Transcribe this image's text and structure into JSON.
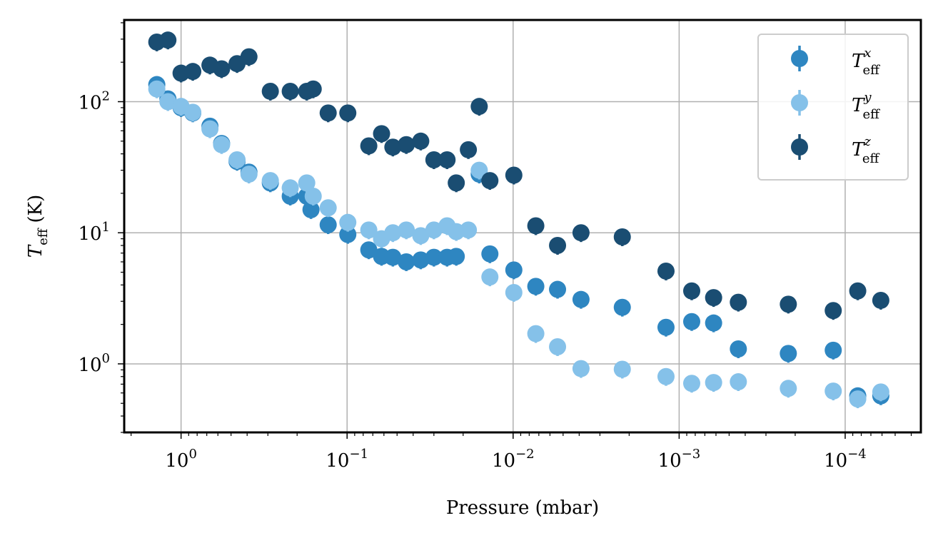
{
  "chart_data": {
    "type": "scatter",
    "xlabel": "Pressure (mbar)",
    "ylabel": "T",
    "ylabel_sub": "eff",
    "ylabel_unit": "(K)",
    "x_scale": "log",
    "y_scale": "log",
    "x_inverted": true,
    "xlim": [
      2.2,
      3.5e-05
    ],
    "ylim": [
      0.3,
      420
    ],
    "grid": true,
    "legend_placement": "top-right",
    "xticks": [
      {
        "base": "10",
        "exp": "0",
        "value": 1
      },
      {
        "base": "10",
        "exp": "−1",
        "value": 0.1
      },
      {
        "base": "10",
        "exp": "−2",
        "value": 0.01
      },
      {
        "base": "10",
        "exp": "−3",
        "value": 0.001
      },
      {
        "base": "10",
        "exp": "−4",
        "value": 0.0001
      }
    ],
    "yticks": [
      {
        "base": "10",
        "exp": "0",
        "value": 1
      },
      {
        "base": "10",
        "exp": "1",
        "value": 10
      },
      {
        "base": "10",
        "exp": "2",
        "value": 100
      }
    ],
    "series": [
      {
        "name": "T_eff^x",
        "legend_main": "T",
        "legend_sup": "x",
        "legend_sub": "eff",
        "color": "#2e86c1",
        "points": [
          [
            1.4,
            135
          ],
          [
            1.2,
            105
          ],
          [
            1.0,
            90
          ],
          [
            0.85,
            82
          ],
          [
            0.67,
            65
          ],
          [
            0.57,
            48
          ],
          [
            0.46,
            35
          ],
          [
            0.39,
            29
          ],
          [
            0.29,
            24
          ],
          [
            0.22,
            19
          ],
          [
            0.175,
            19
          ],
          [
            0.165,
            15
          ],
          [
            0.13,
            11.5
          ],
          [
            0.099,
            9.7
          ],
          [
            0.074,
            7.4
          ],
          [
            0.062,
            6.6
          ],
          [
            0.053,
            6.5
          ],
          [
            0.044,
            6.0
          ],
          [
            0.036,
            6.2
          ],
          [
            0.03,
            6.5
          ],
          [
            0.025,
            6.5
          ],
          [
            0.022,
            6.6
          ],
          [
            0.016,
            28
          ],
          [
            0.0138,
            6.9
          ],
          [
            0.0099,
            5.2
          ],
          [
            0.0073,
            3.9
          ],
          [
            0.0054,
            3.7
          ],
          [
            0.0039,
            3.1
          ],
          [
            0.0022,
            2.7
          ],
          [
            0.0012,
            1.9
          ],
          [
            0.00084,
            2.1
          ],
          [
            0.00062,
            2.05
          ],
          [
            0.00044,
            1.3
          ],
          [
            0.00022,
            1.2
          ],
          [
            0.000118,
            1.27
          ],
          [
            8.4e-05,
            0.57
          ],
          [
            6.1e-05,
            0.57
          ]
        ],
        "yerr_frac": 0.15
      },
      {
        "name": "T_eff^y",
        "legend_main": "T",
        "legend_sup": "y",
        "legend_sub": "eff",
        "color": "#85c1e9",
        "points": [
          [
            1.4,
            125
          ],
          [
            1.2,
            100
          ],
          [
            1.0,
            92
          ],
          [
            0.85,
            83
          ],
          [
            0.67,
            62
          ],
          [
            0.57,
            47
          ],
          [
            0.46,
            36
          ],
          [
            0.39,
            28
          ],
          [
            0.29,
            25
          ],
          [
            0.22,
            22
          ],
          [
            0.175,
            24
          ],
          [
            0.16,
            19
          ],
          [
            0.13,
            15.5
          ],
          [
            0.099,
            12
          ],
          [
            0.074,
            10.5
          ],
          [
            0.062,
            9.0
          ],
          [
            0.053,
            10
          ],
          [
            0.044,
            10.5
          ],
          [
            0.036,
            9.5
          ],
          [
            0.03,
            10.5
          ],
          [
            0.025,
            11.3
          ],
          [
            0.022,
            10.2
          ],
          [
            0.0186,
            10.5
          ],
          [
            0.016,
            30
          ],
          [
            0.0138,
            4.6
          ],
          [
            0.0099,
            3.5
          ],
          [
            0.0073,
            1.7
          ],
          [
            0.0054,
            1.35
          ],
          [
            0.0039,
            0.92
          ],
          [
            0.0022,
            0.91
          ],
          [
            0.0012,
            0.8
          ],
          [
            0.00084,
            0.71
          ],
          [
            0.00062,
            0.72
          ],
          [
            0.00044,
            0.73
          ],
          [
            0.00022,
            0.65
          ],
          [
            0.000118,
            0.62
          ],
          [
            8.4e-05,
            0.54
          ],
          [
            6.1e-05,
            0.61
          ]
        ],
        "yerr_frac": 0.15
      },
      {
        "name": "T_eff^z",
        "legend_main": "T",
        "legend_sup": "z",
        "legend_sub": "eff",
        "color": "#1a4d72",
        "points": [
          [
            1.4,
            285
          ],
          [
            1.2,
            295
          ],
          [
            1.0,
            165
          ],
          [
            0.85,
            170
          ],
          [
            0.67,
            190
          ],
          [
            0.57,
            178
          ],
          [
            0.46,
            195
          ],
          [
            0.39,
            220
          ],
          [
            0.29,
            120
          ],
          [
            0.22,
            120
          ],
          [
            0.175,
            120
          ],
          [
            0.16,
            125
          ],
          [
            0.13,
            82
          ],
          [
            0.099,
            82
          ],
          [
            0.074,
            46
          ],
          [
            0.062,
            57
          ],
          [
            0.053,
            45
          ],
          [
            0.044,
            47
          ],
          [
            0.036,
            50
          ],
          [
            0.03,
            36
          ],
          [
            0.025,
            36
          ],
          [
            0.022,
            24
          ],
          [
            0.0186,
            43
          ],
          [
            0.016,
            92
          ],
          [
            0.0138,
            25
          ],
          [
            0.0099,
            27.5
          ],
          [
            0.0073,
            11.3
          ],
          [
            0.0054,
            8.0
          ],
          [
            0.0039,
            10
          ],
          [
            0.0022,
            9.3
          ],
          [
            0.0012,
            5.1
          ],
          [
            0.00084,
            3.6
          ],
          [
            0.00062,
            3.2
          ],
          [
            0.00044,
            2.95
          ],
          [
            0.00022,
            2.85
          ],
          [
            0.000118,
            2.55
          ],
          [
            8.4e-05,
            3.6
          ],
          [
            6.1e-05,
            3.05
          ]
        ],
        "yerr_frac": 0.15
      }
    ],
    "colors": {
      "grid": "#b0b0b0",
      "legend_border": "#cccccc",
      "axis": "#000000"
    }
  }
}
